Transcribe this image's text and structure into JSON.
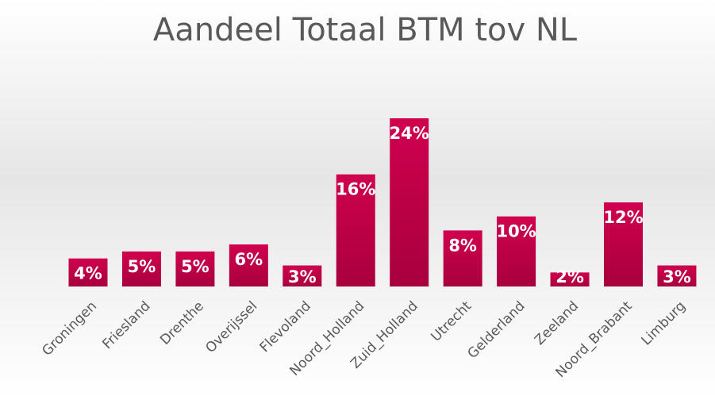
{
  "chart_data": {
    "type": "bar",
    "title": "Aandeel Totaal BTM tov NL",
    "categories": [
      "Groningen",
      "Friesland",
      "Drenthe",
      "Overijssel",
      "Flevoland",
      "Noord_Holland",
      "Zuid_Holland",
      "Utrecht",
      "Gelderland",
      "Zeeland",
      "Noord_Brabant",
      "Limburg"
    ],
    "values": [
      4,
      5,
      5,
      6,
      3,
      16,
      24,
      8,
      10,
      2,
      12,
      3
    ],
    "value_labels": [
      "4%",
      "5%",
      "5%",
      "6%",
      "3%",
      "16%",
      "24%",
      "8%",
      "10%",
      "2%",
      "12%",
      "3%"
    ],
    "color": "#c4004a"
  }
}
